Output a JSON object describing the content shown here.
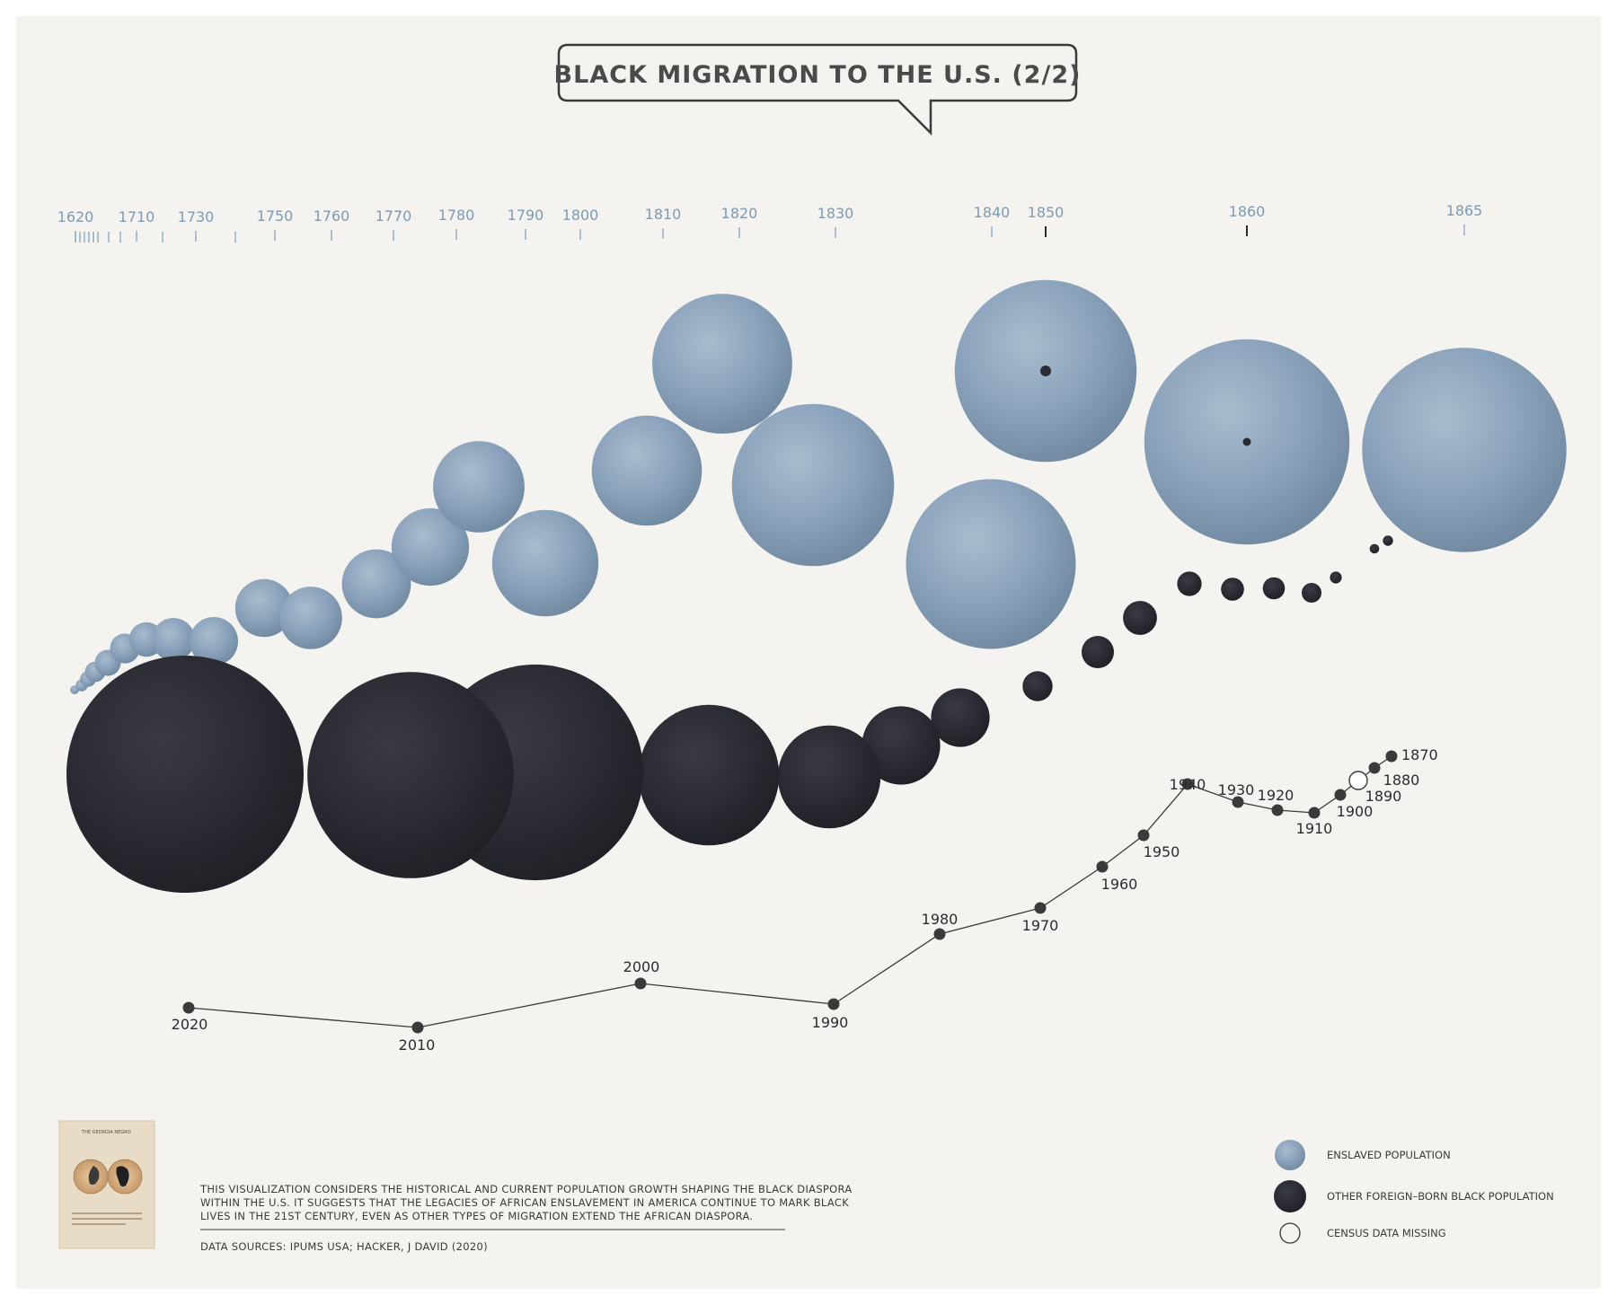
{
  "title": "BLACK MIGRATION TO THE U.S. (2/2)",
  "colors": {
    "background": "#ffffff",
    "paper": "#f4f3ef",
    "enslaved": "#8aa2bb",
    "enslaved_dark": "#6f889f",
    "foreign_born": "#2a2a32",
    "line": "#3a3a3a",
    "tick": "#7e9ab4"
  },
  "chart_data": [
    {
      "type": "timeline",
      "tick_labels": [
        {
          "label": "1620",
          "year": 1620
        },
        {
          "label": "1710",
          "year": 1710
        },
        {
          "label": "1730",
          "year": 1730
        },
        {
          "label": "1750",
          "year": 1750
        },
        {
          "label": "1760",
          "year": 1760
        },
        {
          "label": "1770",
          "year": 1770
        },
        {
          "label": "1780",
          "year": 1780
        },
        {
          "label": "1790",
          "year": 1790
        },
        {
          "label": "1800",
          "year": 1800
        },
        {
          "label": "1810",
          "year": 1810
        },
        {
          "label": "1820",
          "year": 1820
        },
        {
          "label": "1830",
          "year": 1830
        },
        {
          "label": "1840",
          "year": 1840
        },
        {
          "label": "1850",
          "year": 1850
        },
        {
          "label": "1860",
          "year": 1860
        },
        {
          "label": "1865",
          "year": 1865
        }
      ],
      "highlighted_years": [
        1850,
        1860
      ]
    },
    {
      "type": "scatter",
      "series": [
        {
          "name": "ENSLAVED POPULATION",
          "points": [
            {
              "x": 1620,
              "r": 1.0
            },
            {
              "x": 1650,
              "r": 1.4
            },
            {
              "x": 1680,
              "r": 1.9
            },
            {
              "x": 1700,
              "r": 2.6
            },
            {
              "x": 1710,
              "r": 3.4
            },
            {
              "x": 1720,
              "r": 4.4
            },
            {
              "x": 1730,
              "r": 5.6
            },
            {
              "x": 1740,
              "r": 6.4
            },
            {
              "x": 1750,
              "r": 7.4
            },
            {
              "x": 1755,
              "r": 9.2
            },
            {
              "x": 1760,
              "r": 10.4
            },
            {
              "x": 1770,
              "r": 12.4
            },
            {
              "x": 1775,
              "r": 13.4
            },
            {
              "x": 1780,
              "r": 14.8
            },
            {
              "x": 1785,
              "r": 16.6
            },
            {
              "x": 1790,
              "r": 19.6
            },
            {
              "x": 1800,
              "r": 22.8
            },
            {
              "x": 1810,
              "r": 23.6
            },
            {
              "x": 1820,
              "r": 30.0
            },
            {
              "x": 1830,
              "r": 34.8
            },
            {
              "x": 1840,
              "r": 36.4
            },
            {
              "x": 1850,
              "r": 39.0
            },
            {
              "x": 1860,
              "r": 44.0
            },
            {
              "x": 1865,
              "r": 43.8
            }
          ]
        },
        {
          "name": "OTHER FOREIGN–BORN BLACK POPULATION",
          "points": [
            {
              "x": 1865,
              "r": 2.4
            },
            {
              "x": 1870,
              "r": 2.6
            },
            {
              "x": 1880,
              "r": 3.0
            },
            {
              "x": 1890,
              "r": 5.0
            },
            {
              "x": 1900,
              "r": 5.6
            },
            {
              "x": 1910,
              "r": 5.8
            },
            {
              "x": 1920,
              "r": 6.2
            },
            {
              "x": 1930,
              "r": 8.6
            },
            {
              "x": 1940,
              "r": 8.2
            },
            {
              "x": 1950,
              "r": 7.6
            },
            {
              "x": 1960,
              "r": 14.8
            },
            {
              "x": 1970,
              "r": 19.8
            },
            {
              "x": 1980,
              "r": 26.0
            },
            {
              "x": 1990,
              "r": 35.6
            },
            {
              "x": 2000,
              "r": 54.6
            },
            {
              "x": 2010,
              "r": 52.2
            },
            {
              "x": 2020,
              "r": 60.0
            }
          ]
        }
      ]
    },
    {
      "type": "line",
      "labels": [
        "2020",
        "2010",
        "2000",
        "1990",
        "1980",
        "1970",
        "1960",
        "1950",
        "1940",
        "1930",
        "1920",
        "1910",
        "1900",
        "1890",
        "1880",
        "1870"
      ],
      "x": [
        2020,
        2010,
        2000,
        1990,
        1980,
        1970,
        1960,
        1950,
        1940,
        1930,
        1920,
        1910,
        1900,
        1890,
        1880,
        1870
      ],
      "census_missing": [
        "1890"
      ]
    }
  ],
  "legend": {
    "enslaved": "ENSLAVED POPULATION",
    "foreign": "OTHER FOREIGN–BORN BLACK POPULATION",
    "missing": "CENSUS DATA MISSING"
  },
  "description": [
    "THIS VISUALIZATION CONSIDERS THE HISTORICAL AND CURRENT POPULATION GROWTH SHAPING THE BLACK DIASPORA",
    "WITHIN THE U.S. IT SUGGESTS THAT THE LEGACIES OF AFRICAN ENSLAVEMENT IN AMERICA CONTINUE TO MARK BLACK",
    "LIVES IN THE 21ST CENTURY, EVEN AS OTHER TYPES OF MIGRATION EXTEND THE AFRICAN DIASPORA."
  ],
  "sources": "DATA SOURCES: IPUMS USA; HACKER, J DAVID (2020)",
  "thumbnail": {
    "title": "THE GEORGIA NEGRO."
  }
}
